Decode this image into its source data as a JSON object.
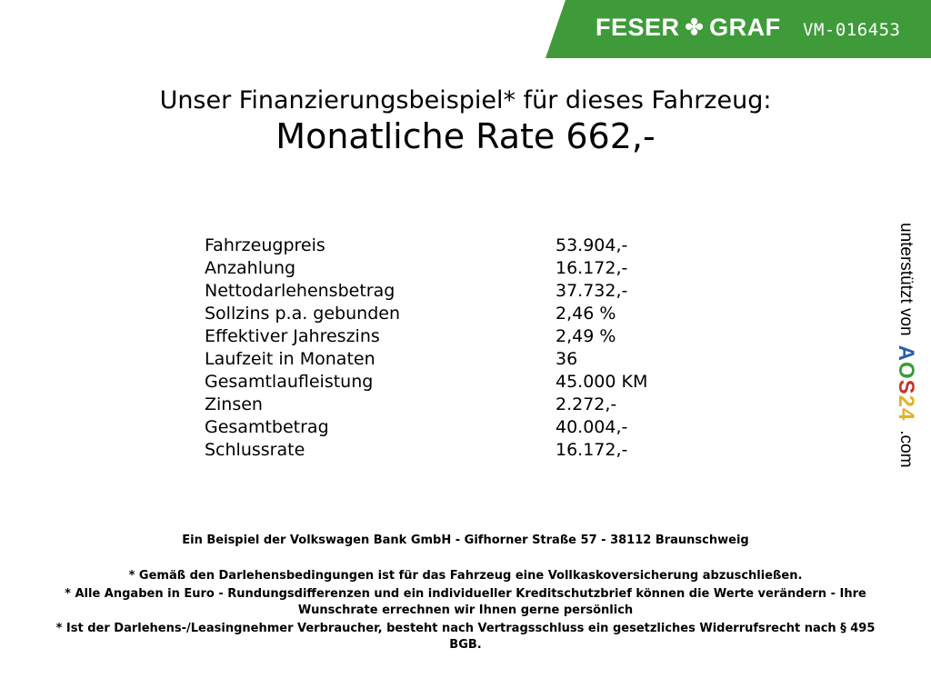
{
  "header": {
    "brand_left": "FESER",
    "brand_right": "GRAF",
    "brand_color": "#3f9b3a",
    "vehicle_id": "VM-016453"
  },
  "heading": {
    "line1": "Unser Finanzierungsbeispiel* für dieses Fahrzeug:",
    "line2": "Monatliche Rate 662,-"
  },
  "finance_table": [
    {
      "label": "Fahrzeugpreis",
      "value": "53.904,-"
    },
    {
      "label": "Anzahlung",
      "value": "16.172,-"
    },
    {
      "label": "Nettodarlehensbetrag",
      "value": "37.732,-"
    },
    {
      "label": "Sollzins p.a. gebunden",
      "value": "2,46 %"
    },
    {
      "label": "Effektiver Jahreszins",
      "value": "2,49 %"
    },
    {
      "label": "Laufzeit in Monaten",
      "value": "36"
    },
    {
      "label": "Gesamtlaufleistung",
      "value": "45.000 KM"
    },
    {
      "label": "Zinsen",
      "value": "2.272,-"
    },
    {
      "label": "Gesamtbetrag",
      "value": "40.004,-"
    },
    {
      "label": "Schlussrate",
      "value": "16.172,-"
    }
  ],
  "sidebar": {
    "supported_by": "unterstützt von",
    "logo": "AOS24",
    "domain": ".com"
  },
  "footer": {
    "bank": "Ein Beispiel der Volkswagen Bank GmbH - Gifhorner Straße 57 - 38112 Braunschweig",
    "notes": [
      "* Gemäß den Darlehensbedingungen ist für das Fahrzeug eine Vollkaskoversicherung abzuschließen.",
      "* Alle Angaben in Euro - Rundungsdifferenzen und ein individueller Kreditschutzbrief können die Werte verändern - Ihre Wunschrate errechnen wir Ihnen gerne persönlich",
      "* Ist der Darlehens-/Leasingnehmer Verbraucher, besteht nach Vertragsschluss ein gesetzliches Widerrufsrecht nach § 495 BGB."
    ]
  }
}
